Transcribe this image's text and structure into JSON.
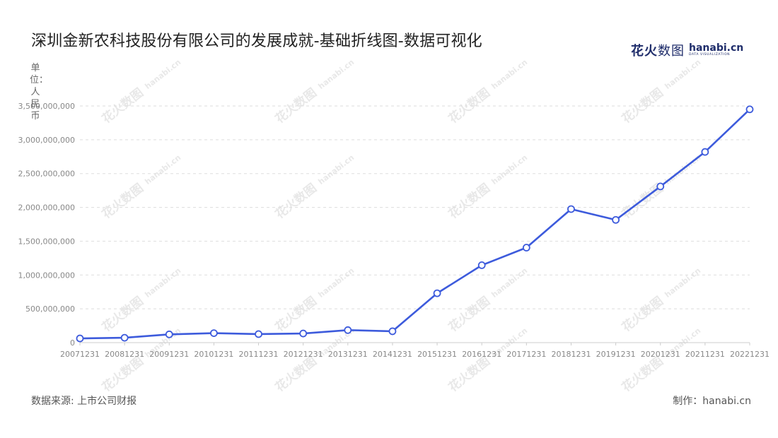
{
  "title": "深圳金新农科技股份有限公司的发展成就-基础折线图-数据可视化",
  "brand": {
    "cn_bold": "花火",
    "cn_thin": "数图",
    "en": "hanabi.cn",
    "tag": "DATA VISUALIZATION"
  },
  "unit_label": "单位：人民币",
  "footer": {
    "source": "数据来源: 上市公司财报",
    "credit": "制作：hanabi.cn"
  },
  "watermark": {
    "cn": "花火数图",
    "en": "hanabi.cn"
  },
  "colors": {
    "line": "#3d5bdc",
    "grid": "#dddddd",
    "axis_text": "#888888",
    "marker_fill": "#ffffff"
  },
  "chart_data": {
    "type": "line",
    "title": "深圳金新农科技股份有限公司的发展成就-基础折线图-数据可视化",
    "ylabel": "单位：人民币",
    "xlabel": "",
    "categories": [
      "20071231",
      "20081231",
      "20091231",
      "20101231",
      "20111231",
      "20121231",
      "20131231",
      "20141231",
      "20151231",
      "20161231",
      "20171231",
      "20181231",
      "20191231",
      "20201231",
      "20211231",
      "20221231"
    ],
    "series": [
      {
        "values": [
          62000000,
          72000000,
          122000000,
          140000000,
          126000000,
          135000000,
          185000000,
          168000000,
          730000000,
          1145000000,
          1405000000,
          1975000000,
          1815000000,
          2310000000,
          2820000000,
          3450000000
        ]
      }
    ],
    "ylim": [
      0,
      3500000000
    ],
    "yticks": [
      0,
      500000000,
      1000000000,
      1500000000,
      2000000000,
      2500000000,
      3000000000,
      3500000000
    ],
    "ytick_labels": [
      "0",
      "500,000,000",
      "1,000,000,000",
      "1,500,000,000",
      "2,000,000,000",
      "2,500,000,000",
      "3,000,000,000",
      "3,500,000,000"
    ],
    "grid": true,
    "legend": "none"
  }
}
